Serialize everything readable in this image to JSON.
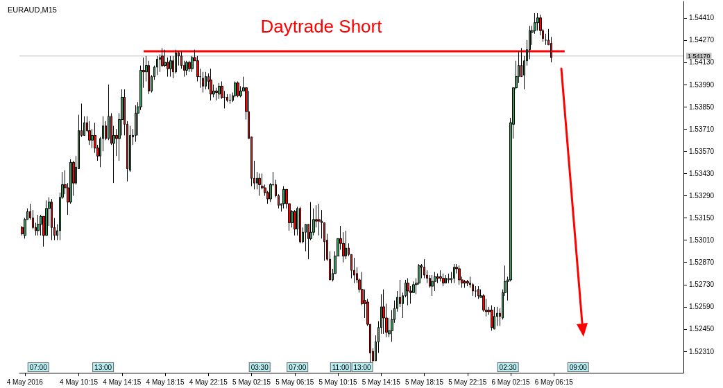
{
  "chart_data": {
    "type": "candlestick",
    "title": "Daytrade Short",
    "subtitle": "EURAUD,M15",
    "xlim": [
      "2016-05-04T04:45",
      "2016-05-06T18:15"
    ],
    "xticks": [
      {
        "value": "2016-05-04T05:15",
        "label": "4 May 2016"
      },
      {
        "value": "2016-05-04T10:15",
        "label": "4 May 10:15"
      },
      {
        "value": "2016-05-04T14:15",
        "label": "4 May 14:15"
      },
      {
        "value": "2016-05-04T18:15",
        "label": "4 May 18:15"
      },
      {
        "value": "2016-05-04T22:15",
        "label": "4 May 22:15"
      },
      {
        "value": "2016-05-05T02:15",
        "label": "5 May 02:15"
      },
      {
        "value": "2016-05-05T06:15",
        "label": "5 May 06:15"
      },
      {
        "value": "2016-05-05T10:15",
        "label": "5 May 10:15"
      },
      {
        "value": "2016-05-05T14:15",
        "label": "5 May 14:15"
      },
      {
        "value": "2016-05-05T18:15",
        "label": "5 May 18:15"
      },
      {
        "value": "2016-05-05T22:15",
        "label": "5 May 22:15"
      },
      {
        "value": "2016-05-06T02:15",
        "label": "6 May 02:15"
      },
      {
        "value": "2016-05-06T06:15",
        "label": "6 May 06:15"
      }
    ],
    "ylim": [
      1.52175,
      1.54514
    ],
    "yticks": [
      {
        "value": 1.5231,
        "label": "1.52310"
      },
      {
        "value": 1.5245,
        "label": "1.52450"
      },
      {
        "value": 1.5259,
        "label": "1.52590"
      },
      {
        "value": 1.5273,
        "label": "1.52730"
      },
      {
        "value": 1.5287,
        "label": "1.52870"
      },
      {
        "value": 1.5301,
        "label": "1.53010"
      },
      {
        "value": 1.5315,
        "label": "1.53150"
      },
      {
        "value": 1.5329,
        "label": "1.53290"
      },
      {
        "value": 1.5343,
        "label": "1.53430"
      },
      {
        "value": 1.5357,
        "label": "1.53570"
      },
      {
        "value": 1.5371,
        "label": "1.53710"
      },
      {
        "value": 1.5385,
        "label": "1.53850"
      },
      {
        "value": 1.5399,
        "label": "1.53990"
      },
      {
        "value": 1.5413,
        "label": "1.54130"
      },
      {
        "value": 1.5427,
        "label": "1.54270"
      },
      {
        "value": 1.5441,
        "label": "1.54410"
      }
    ],
    "ref_lines": [
      {
        "axis": "y",
        "value": 1.5417,
        "label": "1.54170",
        "color": "#c0c0c0"
      }
    ],
    "annotations": [
      {
        "text": "07:00",
        "x": "2016-05-04T06:30"
      },
      {
        "text": "13:00",
        "x": "2016-05-04T12:30"
      },
      {
        "text": "03:30",
        "x": "2016-05-05T03:00"
      },
      {
        "text": "07:00",
        "x": "2016-05-05T06:30"
      },
      {
        "text": "11:00",
        "x": "2016-05-05T10:30"
      },
      {
        "text": "13:00",
        "x": "2016-05-05T12:30"
      },
      {
        "text": "02:30",
        "x": "2016-05-06T02:00"
      },
      {
        "text": "09:00",
        "x": "2016-05-06T08:30"
      }
    ],
    "series": [
      {
        "x": [
          "2016-05-04T05:00",
          "2016-05-04T05:15",
          "2016-05-04T05:30",
          "2016-05-04T05:45",
          "2016-05-04T06:00",
          "2016-05-04T06:15",
          "2016-05-04T06:30",
          "2016-05-04T06:45",
          "2016-05-04T07:00",
          "2016-05-04T07:15",
          "2016-05-04T07:30",
          "2016-05-04T07:45",
          "2016-05-04T08:00",
          "2016-05-04T08:15",
          "2016-05-04T08:30",
          "2016-05-04T08:45",
          "2016-05-04T09:00",
          "2016-05-04T09:15",
          "2016-05-04T09:30",
          "2016-05-04T09:45",
          "2016-05-04T10:00",
          "2016-05-04T10:15",
          "2016-05-04T10:30",
          "2016-05-04T10:45",
          "2016-05-04T11:00",
          "2016-05-04T11:15",
          "2016-05-04T11:30",
          "2016-05-04T11:45",
          "2016-05-04T12:00",
          "2016-05-04T12:15",
          "2016-05-04T12:30",
          "2016-05-04T12:45",
          "2016-05-04T13:00",
          "2016-05-04T13:15",
          "2016-05-04T13:30",
          "2016-05-04T13:45",
          "2016-05-04T14:00",
          "2016-05-04T14:15",
          "2016-05-04T14:30",
          "2016-05-04T14:45",
          "2016-05-04T15:00",
          "2016-05-04T15:15",
          "2016-05-04T15:30",
          "2016-05-04T15:45",
          "2016-05-04T16:00",
          "2016-05-04T16:15",
          "2016-05-04T16:30",
          "2016-05-04T16:45",
          "2016-05-04T17:00",
          "2016-05-04T17:15",
          "2016-05-04T17:30",
          "2016-05-04T17:45",
          "2016-05-04T18:00",
          "2016-05-04T18:15",
          "2016-05-04T18:30",
          "2016-05-04T18:45",
          "2016-05-04T19:00",
          "2016-05-04T19:15",
          "2016-05-04T19:30",
          "2016-05-04T19:45",
          "2016-05-04T20:00",
          "2016-05-04T20:15",
          "2016-05-04T20:30",
          "2016-05-04T20:45",
          "2016-05-04T21:00",
          "2016-05-04T21:15",
          "2016-05-04T21:30",
          "2016-05-04T21:45",
          "2016-05-04T22:00",
          "2016-05-04T22:15",
          "2016-05-04T22:30",
          "2016-05-04T22:45",
          "2016-05-04T23:00",
          "2016-05-04T23:15",
          "2016-05-04T23:30",
          "2016-05-04T23:45",
          "2016-05-05T00:00",
          "2016-05-05T00:15",
          "2016-05-05T00:30",
          "2016-05-05T00:45",
          "2016-05-05T01:00",
          "2016-05-05T01:15",
          "2016-05-05T01:30",
          "2016-05-05T01:45",
          "2016-05-05T02:00",
          "2016-05-05T02:15",
          "2016-05-05T02:30",
          "2016-05-05T02:45",
          "2016-05-05T03:00",
          "2016-05-05T03:15",
          "2016-05-05T03:30",
          "2016-05-05T03:45",
          "2016-05-05T04:00",
          "2016-05-05T04:15",
          "2016-05-05T04:30",
          "2016-05-05T04:45",
          "2016-05-05T05:00",
          "2016-05-05T05:15",
          "2016-05-05T05:30",
          "2016-05-05T05:45",
          "2016-05-05T06:00",
          "2016-05-05T06:15",
          "2016-05-05T06:30",
          "2016-05-05T06:45",
          "2016-05-05T07:00",
          "2016-05-05T07:15",
          "2016-05-05T07:30",
          "2016-05-05T07:45",
          "2016-05-05T08:00",
          "2016-05-05T08:15",
          "2016-05-05T08:30",
          "2016-05-05T08:45",
          "2016-05-05T09:00",
          "2016-05-05T09:15",
          "2016-05-05T09:30",
          "2016-05-05T09:45",
          "2016-05-05T10:00",
          "2016-05-05T10:15",
          "2016-05-05T10:30",
          "2016-05-05T10:45",
          "2016-05-05T11:00",
          "2016-05-05T11:15",
          "2016-05-05T11:30",
          "2016-05-05T11:45",
          "2016-05-05T12:00",
          "2016-05-05T12:15",
          "2016-05-05T12:30",
          "2016-05-05T12:45",
          "2016-05-05T13:00",
          "2016-05-05T13:15",
          "2016-05-05T13:30",
          "2016-05-05T13:45",
          "2016-05-05T14:00",
          "2016-05-05T14:15",
          "2016-05-05T14:30",
          "2016-05-05T14:45",
          "2016-05-05T15:00",
          "2016-05-05T15:15",
          "2016-05-05T15:30",
          "2016-05-05T15:45",
          "2016-05-05T16:00",
          "2016-05-05T16:15",
          "2016-05-05T16:30",
          "2016-05-05T16:45",
          "2016-05-05T17:00",
          "2016-05-05T17:15",
          "2016-05-05T17:30",
          "2016-05-05T17:45",
          "2016-05-05T18:00",
          "2016-05-05T18:15",
          "2016-05-05T18:30",
          "2016-05-05T18:45",
          "2016-05-05T19:00",
          "2016-05-05T19:15",
          "2016-05-05T19:30",
          "2016-05-05T19:45",
          "2016-05-05T20:00",
          "2016-05-05T20:15",
          "2016-05-05T20:30",
          "2016-05-05T20:45",
          "2016-05-05T21:00",
          "2016-05-05T21:15",
          "2016-05-05T21:30",
          "2016-05-05T21:45",
          "2016-05-05T22:00",
          "2016-05-05T22:15",
          "2016-05-05T22:30",
          "2016-05-05T22:45",
          "2016-05-05T23:00",
          "2016-05-05T23:15",
          "2016-05-05T23:30",
          "2016-05-05T23:45",
          "2016-05-06T00:00",
          "2016-05-06T00:15",
          "2016-05-06T00:30",
          "2016-05-06T00:45",
          "2016-05-06T01:00",
          "2016-05-06T01:15",
          "2016-05-06T01:30",
          "2016-05-06T01:45",
          "2016-05-06T02:00",
          "2016-05-06T02:15",
          "2016-05-06T02:30",
          "2016-05-06T02:45",
          "2016-05-06T03:00",
          "2016-05-06T03:15",
          "2016-05-06T03:30",
          "2016-05-06T03:45",
          "2016-05-06T04:00",
          "2016-05-06T04:15",
          "2016-05-06T04:30",
          "2016-05-06T04:45",
          "2016-05-06T05:00",
          "2016-05-06T05:15",
          "2016-05-06T05:30",
          "2016-05-06T05:45",
          "2016-05-06T06:00"
        ],
        "ohlc": [
          [
            1.5309,
            1.531,
            1.5304,
            1.5305
          ],
          [
            1.5304,
            1.5315,
            1.5302,
            1.5314
          ],
          [
            1.5314,
            1.5321,
            1.5314,
            1.5319
          ],
          [
            1.5319,
            1.5324,
            1.5314,
            1.5315
          ],
          [
            1.5315,
            1.532,
            1.5308,
            1.5309
          ],
          [
            1.5309,
            1.5312,
            1.5304,
            1.5307
          ],
          [
            1.5307,
            1.5317,
            1.5304,
            1.5311
          ],
          [
            1.5311,
            1.5317,
            1.5304,
            1.5316
          ],
          [
            1.5316,
            1.5316,
            1.5297,
            1.5304
          ],
          [
            1.5304,
            1.5326,
            1.5304,
            1.5321
          ],
          [
            1.5321,
            1.5328,
            1.531,
            1.5325
          ],
          [
            1.5325,
            1.5327,
            1.5301,
            1.5309
          ],
          [
            1.5309,
            1.5315,
            1.5301,
            1.5304
          ],
          [
            1.5304,
            1.5311,
            1.5301,
            1.5307
          ],
          [
            1.5307,
            1.5331,
            1.5301,
            1.5328
          ],
          [
            1.5328,
            1.5344,
            1.5327,
            1.5336
          ],
          [
            1.5336,
            1.5345,
            1.533,
            1.5334
          ],
          [
            1.5334,
            1.5337,
            1.5317,
            1.5325
          ],
          [
            1.5325,
            1.5352,
            1.5324,
            1.535
          ],
          [
            1.535,
            1.5351,
            1.5329,
            1.5337
          ],
          [
            1.5337,
            1.5354,
            1.5336,
            1.5347
          ],
          [
            1.5346,
            1.538,
            1.5346,
            1.537
          ],
          [
            1.537,
            1.5387,
            1.5366,
            1.5367
          ],
          [
            1.5367,
            1.5379,
            1.5367,
            1.5375
          ],
          [
            1.5375,
            1.5379,
            1.5369,
            1.537
          ],
          [
            1.537,
            1.5376,
            1.5361,
            1.5364
          ],
          [
            1.5364,
            1.5371,
            1.5359,
            1.5367
          ],
          [
            1.5367,
            1.5375,
            1.5356,
            1.5359
          ],
          [
            1.5359,
            1.5361,
            1.5351,
            1.5354
          ],
          [
            1.5354,
            1.5366,
            1.5347,
            1.5365
          ],
          [
            1.5365,
            1.5379,
            1.5357,
            1.5373
          ],
          [
            1.5373,
            1.5376,
            1.5364,
            1.5365
          ],
          [
            1.5365,
            1.5399,
            1.5364,
            1.5379
          ],
          [
            1.5379,
            1.5381,
            1.5361,
            1.5362
          ],
          [
            1.5362,
            1.5373,
            1.5337,
            1.5367
          ],
          [
            1.5367,
            1.5371,
            1.5354,
            1.5365
          ],
          [
            1.5365,
            1.5381,
            1.5351,
            1.5377
          ],
          [
            1.5377,
            1.5396,
            1.5367,
            1.5391
          ],
          [
            1.5391,
            1.5396,
            1.5367,
            1.5374
          ],
          [
            1.5374,
            1.5376,
            1.5338,
            1.5346
          ],
          [
            1.5345,
            1.5373,
            1.5344,
            1.5367
          ],
          [
            1.5367,
            1.5371,
            1.5361,
            1.5366
          ],
          [
            1.5367,
            1.5386,
            1.5363,
            1.5381
          ],
          [
            1.5381,
            1.5388,
            1.5367,
            1.5385
          ],
          [
            1.5385,
            1.5411,
            1.5383,
            1.5408
          ],
          [
            1.5408,
            1.5416,
            1.5397,
            1.5407
          ],
          [
            1.5407,
            1.5417,
            1.5401,
            1.5411
          ],
          [
            1.5411,
            1.5414,
            1.5393,
            1.5395
          ],
          [
            1.5395,
            1.5405,
            1.5394,
            1.5404
          ],
          [
            1.5404,
            1.5411,
            1.5402,
            1.541
          ],
          [
            1.541,
            1.5417,
            1.5405,
            1.5415
          ],
          [
            1.5415,
            1.5418,
            1.5407,
            1.5416
          ],
          [
            1.5417,
            1.5422,
            1.541,
            1.5411
          ],
          [
            1.5411,
            1.5421,
            1.541,
            1.5413
          ],
          [
            1.5413,
            1.5416,
            1.5404,
            1.5409
          ],
          [
            1.5409,
            1.5417,
            1.5404,
            1.5414
          ],
          [
            1.5414,
            1.5417,
            1.5403,
            1.5407
          ],
          [
            1.5407,
            1.5421,
            1.5406,
            1.5419
          ],
          [
            1.5419,
            1.542,
            1.5411,
            1.5417
          ],
          [
            1.5417,
            1.542,
            1.5409,
            1.5411
          ],
          [
            1.5411,
            1.5414,
            1.5404,
            1.5408
          ],
          [
            1.5408,
            1.5414,
            1.5405,
            1.5413
          ],
          [
            1.5413,
            1.5414,
            1.5407,
            1.5409
          ],
          [
            1.5409,
            1.5417,
            1.5407,
            1.5416
          ],
          [
            1.5416,
            1.5421,
            1.5414,
            1.5414
          ],
          [
            1.5414,
            1.5417,
            1.5401,
            1.5404
          ],
          [
            1.5404,
            1.5409,
            1.5397,
            1.5404
          ],
          [
            1.5403,
            1.5407,
            1.5394,
            1.5398
          ],
          [
            1.5398,
            1.5407,
            1.5396,
            1.5404
          ],
          [
            1.5404,
            1.5406,
            1.5396,
            1.5401
          ],
          [
            1.5402,
            1.5409,
            1.5389,
            1.5393
          ],
          [
            1.5393,
            1.5399,
            1.5391,
            1.5395
          ],
          [
            1.5395,
            1.5397,
            1.5389,
            1.5394
          ],
          [
            1.5393,
            1.54,
            1.539,
            1.5398
          ],
          [
            1.5398,
            1.5401,
            1.539,
            1.5391
          ],
          [
            1.5391,
            1.5395,
            1.5384,
            1.5391
          ],
          [
            1.5391,
            1.5393,
            1.5388,
            1.5389
          ],
          [
            1.5389,
            1.5393,
            1.5387,
            1.5389
          ],
          [
            1.5389,
            1.5394,
            1.5388,
            1.5392
          ],
          [
            1.5392,
            1.5401,
            1.5391,
            1.54
          ],
          [
            1.54,
            1.5401,
            1.5391,
            1.5392
          ],
          [
            1.5392,
            1.5398,
            1.5391,
            1.5395
          ],
          [
            1.5395,
            1.5404,
            1.5395,
            1.5397
          ],
          [
            1.5397,
            1.5397,
            1.5377,
            1.5382
          ],
          [
            1.5382,
            1.5395,
            1.5365,
            1.5365
          ],
          [
            1.5366,
            1.5366,
            1.5335,
            1.534
          ],
          [
            1.534,
            1.5351,
            1.5333,
            1.5337
          ],
          [
            1.5337,
            1.5344,
            1.5333,
            1.534
          ],
          [
            1.534,
            1.5343,
            1.5329,
            1.5336
          ],
          [
            1.5335,
            1.5343,
            1.5333,
            1.5334
          ],
          [
            1.5334,
            1.5336,
            1.5329,
            1.5331
          ],
          [
            1.5331,
            1.5332,
            1.5324,
            1.5327
          ],
          [
            1.5327,
            1.5337,
            1.5325,
            1.5336
          ],
          [
            1.5336,
            1.5344,
            1.5335,
            1.5336
          ],
          [
            1.5336,
            1.5339,
            1.5328,
            1.5329
          ],
          [
            1.5329,
            1.533,
            1.5321,
            1.5323
          ],
          [
            1.5323,
            1.5324,
            1.5319,
            1.5324
          ],
          [
            1.5324,
            1.5335,
            1.5321,
            1.5333
          ],
          [
            1.5333,
            1.5333,
            1.5321,
            1.5324
          ],
          [
            1.5324,
            1.5324,
            1.5307,
            1.5312
          ],
          [
            1.5312,
            1.532,
            1.5309,
            1.5319
          ],
          [
            1.5319,
            1.532,
            1.5304,
            1.5308
          ],
          [
            1.5308,
            1.5322,
            1.5304,
            1.5321
          ],
          [
            1.5321,
            1.5322,
            1.5299,
            1.53
          ],
          [
            1.53,
            1.5309,
            1.5299,
            1.5306
          ],
          [
            1.5306,
            1.5311,
            1.5294,
            1.5311
          ],
          [
            1.5311,
            1.5311,
            1.5289,
            1.5302
          ],
          [
            1.5302,
            1.5325,
            1.5301,
            1.5306
          ],
          [
            1.5306,
            1.5321,
            1.5304,
            1.5314
          ],
          [
            1.5314,
            1.5323,
            1.5309,
            1.5313
          ],
          [
            1.5314,
            1.5324,
            1.5304,
            1.5313
          ],
          [
            1.5313,
            1.532,
            1.5302,
            1.5312
          ],
          [
            1.5312,
            1.5312,
            1.5288,
            1.53
          ],
          [
            1.5301,
            1.5305,
            1.5288,
            1.5289
          ],
          [
            1.5289,
            1.5294,
            1.5276,
            1.5276
          ],
          [
            1.5276,
            1.5283,
            1.5275,
            1.528
          ],
          [
            1.528,
            1.5294,
            1.528,
            1.5291
          ],
          [
            1.5291,
            1.5302,
            1.5291,
            1.5302
          ],
          [
            1.5302,
            1.531,
            1.5295,
            1.5299
          ],
          [
            1.5299,
            1.5306,
            1.5287,
            1.5291
          ],
          [
            1.5291,
            1.5307,
            1.5289,
            1.5296
          ],
          [
            1.5296,
            1.5299,
            1.5291,
            1.5292
          ],
          [
            1.5292,
            1.5292,
            1.5277,
            1.5282
          ],
          [
            1.5282,
            1.529,
            1.5274,
            1.5279
          ],
          [
            1.528,
            1.5284,
            1.5274,
            1.5276
          ],
          [
            1.5276,
            1.5277,
            1.5268,
            1.527
          ],
          [
            1.527,
            1.5281,
            1.526,
            1.5261
          ],
          [
            1.5263,
            1.527,
            1.5252,
            1.5261
          ],
          [
            1.5262,
            1.5264,
            1.5247,
            1.5248
          ],
          [
            1.5248,
            1.5248,
            1.5224,
            1.523
          ],
          [
            1.5231,
            1.5233,
            1.5224,
            1.5225
          ],
          [
            1.5225,
            1.5241,
            1.5225,
            1.5237
          ],
          [
            1.5237,
            1.525,
            1.523,
            1.5246
          ],
          [
            1.5246,
            1.5267,
            1.5242,
            1.5259
          ],
          [
            1.5259,
            1.527,
            1.5242,
            1.5252
          ],
          [
            1.5252,
            1.5261,
            1.524,
            1.5243
          ],
          [
            1.5242,
            1.5252,
            1.524,
            1.5244
          ],
          [
            1.5244,
            1.5257,
            1.5237,
            1.5251
          ],
          [
            1.5251,
            1.5263,
            1.5249,
            1.5258
          ],
          [
            1.5258,
            1.5269,
            1.5256,
            1.5265
          ],
          [
            1.5265,
            1.5276,
            1.5259,
            1.5261
          ],
          [
            1.5261,
            1.5268,
            1.5252,
            1.5266
          ],
          [
            1.5266,
            1.5276,
            1.5265,
            1.5274
          ],
          [
            1.5274,
            1.5277,
            1.526,
            1.5269
          ],
          [
            1.5269,
            1.5272,
            1.5261,
            1.5268
          ],
          [
            1.5268,
            1.5275,
            1.5268,
            1.5273
          ],
          [
            1.5273,
            1.5277,
            1.5267,
            1.5274
          ],
          [
            1.5274,
            1.5286,
            1.5273,
            1.5285
          ],
          [
            1.5285,
            1.5286,
            1.5277,
            1.5284
          ],
          [
            1.5284,
            1.5289,
            1.5277,
            1.5279
          ],
          [
            1.5279,
            1.5282,
            1.5274,
            1.5277
          ],
          [
            1.5277,
            1.5279,
            1.5271,
            1.5272
          ],
          [
            1.5272,
            1.5279,
            1.5266,
            1.5275
          ],
          [
            1.5275,
            1.5281,
            1.5269,
            1.5278
          ],
          [
            1.5278,
            1.528,
            1.5274,
            1.5277
          ],
          [
            1.5278,
            1.5282,
            1.5275,
            1.5277
          ],
          [
            1.5277,
            1.528,
            1.5272,
            1.5274
          ],
          [
            1.5274,
            1.5279,
            1.5274,
            1.5277
          ],
          [
            1.5277,
            1.528,
            1.5274,
            1.5276
          ],
          [
            1.5276,
            1.5281,
            1.5274,
            1.5277
          ],
          [
            1.5277,
            1.5286,
            1.5274,
            1.5284
          ],
          [
            1.5284,
            1.5286,
            1.528,
            1.5283
          ],
          [
            1.5283,
            1.5285,
            1.5273,
            1.5276
          ],
          [
            1.5276,
            1.5278,
            1.5271,
            1.5274
          ],
          [
            1.5275,
            1.5276,
            1.5271,
            1.5274
          ],
          [
            1.5275,
            1.5276,
            1.5272,
            1.5274
          ],
          [
            1.5274,
            1.5278,
            1.5271,
            1.5273
          ],
          [
            1.5273,
            1.5274,
            1.5266,
            1.5269
          ],
          [
            1.5269,
            1.5272,
            1.5265,
            1.5269
          ],
          [
            1.527,
            1.5272,
            1.5264,
            1.5266
          ],
          [
            1.5265,
            1.527,
            1.5265,
            1.5266
          ],
          [
            1.5266,
            1.5267,
            1.5256,
            1.5257
          ],
          [
            1.5257,
            1.5264,
            1.5253,
            1.5256
          ],
          [
            1.5257,
            1.5259,
            1.5254,
            1.5256
          ],
          [
            1.5257,
            1.526,
            1.5244,
            1.5246
          ],
          [
            1.5245,
            1.5259,
            1.5245,
            1.5253
          ],
          [
            1.5253,
            1.5259,
            1.5247,
            1.5255
          ],
          [
            1.5255,
            1.5258,
            1.5247,
            1.5253
          ],
          [
            1.5252,
            1.527,
            1.5251,
            1.5268
          ],
          [
            1.5268,
            1.5285,
            1.5266,
            1.5275
          ],
          [
            1.5275,
            1.5278,
            1.5263,
            1.5276
          ],
          [
            1.5276,
            1.5378,
            1.5275,
            1.5375
          ],
          [
            1.5374,
            1.5397,
            1.5365,
            1.5397
          ],
          [
            1.5397,
            1.5414,
            1.5396,
            1.5404
          ],
          [
            1.5404,
            1.542,
            1.54,
            1.5411
          ],
          [
            1.5411,
            1.5422,
            1.5404,
            1.5404
          ],
          [
            1.5405,
            1.5417,
            1.5396,
            1.5414
          ],
          [
            1.5414,
            1.5427,
            1.5411,
            1.5421
          ],
          [
            1.5421,
            1.5436,
            1.5415,
            1.5433
          ],
          [
            1.5432,
            1.5436,
            1.5424,
            1.5433
          ],
          [
            1.5433,
            1.5444,
            1.5431,
            1.5438
          ],
          [
            1.5438,
            1.5444,
            1.5433,
            1.5441
          ],
          [
            1.5441,
            1.5443,
            1.543,
            1.5433
          ],
          [
            1.5433,
            1.5434,
            1.5426,
            1.5428
          ],
          [
            1.5427,
            1.5431,
            1.5424,
            1.5427
          ],
          [
            1.5427,
            1.5434,
            1.5424,
            1.5424
          ],
          [
            1.5425,
            1.5429,
            1.5413,
            1.5416
          ]
        ]
      },
      {
        "type": "line",
        "color": "#ff0000",
        "x": [
          "2016-05-04T16:15",
          "2016-05-06T07:15"
        ],
        "values": [
          1.542,
          1.542
        ]
      }
    ],
    "marker": "none"
  }
}
